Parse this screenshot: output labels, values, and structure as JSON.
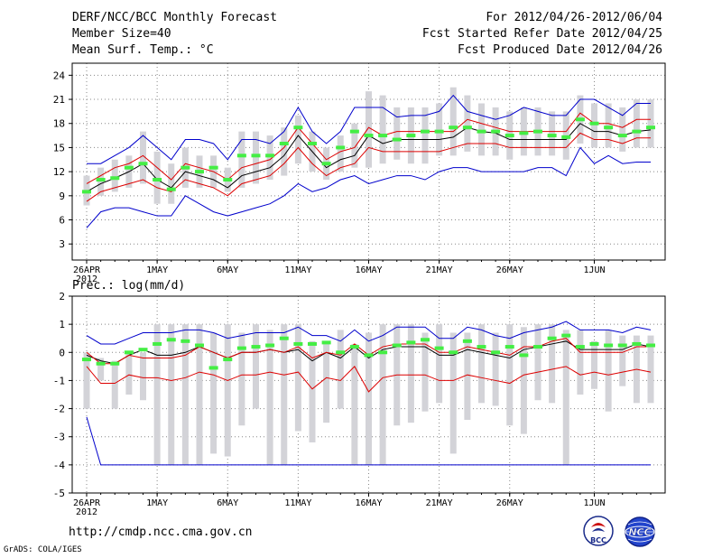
{
  "header": {
    "title": "DERF/NCC/BCC Monthly Forecast",
    "member_size": "Member Size=40",
    "variable": "Mean Surf. Temp.: °C",
    "period": "For 2012/04/26-2012/06/04",
    "started": "Fcst Started Refer Date 2012/04/25",
    "produced": "Fcst Produced Date 2012/04/26"
  },
  "footer": {
    "url": "http://cmdp.ncc.cma.gov.cn",
    "credit": "GrADS: COLA/IGES",
    "logo_bcc_text": "BCC",
    "logo_ncc_text": "NCC"
  },
  "chart_data": [
    {
      "type": "box-ensemble",
      "title": "Mean Surf. Temp.: °C",
      "xlabel": "",
      "ylabel": "°C",
      "ylim": [
        1,
        25.5
      ],
      "yticks": [
        3,
        6,
        9,
        12,
        15,
        18,
        21,
        24
      ],
      "days": 40,
      "xtick_labels": [
        {
          "day": 0,
          "label": "26APR",
          "sub": "2012"
        },
        {
          "day": 5,
          "label": "1MAY"
        },
        {
          "day": 10,
          "label": "6MAY"
        },
        {
          "day": 15,
          "label": "11MAY"
        },
        {
          "day": 20,
          "label": "16MAY"
        },
        {
          "day": 25,
          "label": "21MAY"
        },
        {
          "day": 30,
          "label": "26MAY"
        },
        {
          "day": 36,
          "label": "1JUN"
        }
      ],
      "grid": "dotted",
      "series": [
        {
          "name": "mean",
          "color": "#000000",
          "values": [
            9.5,
            10.5,
            11.2,
            12.0,
            13.0,
            11.0,
            10.0,
            12.0,
            11.5,
            11.0,
            10.0,
            11.5,
            12.0,
            12.5,
            14.0,
            16.5,
            14.5,
            12.5,
            13.5,
            14.0,
            16.5,
            15.5,
            16.0,
            16.0,
            16.0,
            16.0,
            16.3,
            17.5,
            17.0,
            16.8,
            16.0,
            16.0,
            16.0,
            16.0,
            16.0,
            18.0,
            17.0,
            17.0,
            16.5,
            17.0,
            17.2
          ]
        },
        {
          "name": "upper-90pct",
          "color": "#dd0000",
          "values": [
            10.5,
            11.5,
            12.5,
            13.0,
            14.0,
            12.5,
            11.0,
            13.0,
            12.5,
            12.0,
            11.0,
            12.5,
            13.0,
            13.5,
            15.0,
            17.5,
            15.5,
            13.5,
            14.5,
            15.0,
            17.5,
            16.5,
            17.0,
            17.0,
            17.0,
            17.0,
            17.0,
            18.5,
            18.0,
            17.5,
            17.0,
            17.0,
            17.0,
            17.0,
            17.0,
            19.3,
            18.0,
            18.0,
            17.5,
            18.5,
            18.5
          ]
        },
        {
          "name": "lower-10pct",
          "color": "#dd0000",
          "values": [
            8.3,
            9.5,
            10.0,
            10.5,
            11.0,
            10.0,
            9.5,
            11.0,
            10.5,
            10.0,
            9.0,
            10.5,
            11.0,
            11.5,
            13.0,
            15.0,
            13.0,
            11.5,
            12.5,
            13.0,
            15.0,
            14.5,
            14.5,
            14.5,
            14.5,
            14.5,
            15.0,
            15.5,
            15.5,
            15.5,
            15.0,
            15.0,
            15.0,
            15.0,
            15.0,
            16.8,
            16.0,
            16.0,
            15.5,
            16.2,
            16.2
          ]
        },
        {
          "name": "max",
          "color": "#0000cc",
          "values": [
            13.0,
            13.0,
            14.0,
            15.0,
            16.5,
            15.0,
            13.5,
            16.0,
            16.0,
            15.5,
            13.5,
            16.0,
            16.0,
            15.5,
            17.0,
            20.0,
            17.0,
            15.5,
            17.0,
            20.0,
            20.0,
            20.0,
            18.8,
            19.0,
            19.0,
            19.5,
            21.5,
            19.5,
            19.0,
            18.5,
            19.0,
            20.0,
            19.5,
            19.0,
            19.0,
            21.0,
            21.0,
            20.0,
            19.0,
            20.5,
            20.5
          ]
        },
        {
          "name": "min",
          "color": "#0000cc",
          "values": [
            5.0,
            7.0,
            7.5,
            7.5,
            7.0,
            6.5,
            6.5,
            9.0,
            8.0,
            7.0,
            6.5,
            7.0,
            7.5,
            8.0,
            9.0,
            10.5,
            9.5,
            10.0,
            11.0,
            11.5,
            10.5,
            11.0,
            11.5,
            11.5,
            11.0,
            12.0,
            12.5,
            12.5,
            12.0,
            12.0,
            12.0,
            12.0,
            12.5,
            12.5,
            11.5,
            15.0,
            13.0,
            14.0,
            13.0,
            13.2,
            13.2
          ]
        },
        {
          "name": "observed",
          "color": "#44ee44",
          "values": [
            9.5,
            11.0,
            11.2,
            12.5,
            13.0,
            11.0,
            9.8,
            12.5,
            12.0,
            12.5,
            11.0,
            14.0,
            14.0,
            14.0,
            15.5,
            17.5,
            15.5,
            13.0,
            15.0,
            17.0,
            16.5,
            16.5,
            16.0,
            16.5,
            17.0,
            17.0,
            17.5,
            17.5,
            17.0,
            17.0,
            16.5,
            16.8,
            17.0,
            16.5,
            16.3,
            18.5,
            18.0,
            17.5,
            16.5,
            17.0,
            17.5
          ]
        }
      ],
      "box_ranges": [
        {
          "values": [
            [
              7.8,
              11.5
            ],
            [
              9.0,
              12.5
            ],
            [
              9.5,
              13.5
            ],
            [
              10.0,
              14.0
            ],
            [
              10.5,
              17.0
            ],
            [
              8.0,
              14.5
            ],
            [
              8.0,
              13.0
            ],
            [
              10.0,
              15.0
            ],
            [
              10.0,
              14.0
            ],
            [
              10.0,
              14.0
            ],
            [
              9.5,
              12.5
            ],
            [
              10.0,
              17.0
            ],
            [
              10.5,
              17.0
            ],
            [
              11.0,
              16.5
            ],
            [
              11.5,
              17.5
            ],
            [
              13.0,
              19.0
            ],
            [
              12.0,
              17.0
            ],
            [
              11.0,
              15.0
            ],
            [
              12.0,
              16.5
            ],
            [
              12.5,
              18.0
            ],
            [
              12.5,
              22.0
            ],
            [
              13.0,
              21.5
            ],
            [
              13.5,
              20.0
            ],
            [
              13.0,
              20.0
            ],
            [
              13.0,
              20.0
            ],
            [
              14.0,
              20.5
            ],
            [
              14.0,
              22.5
            ],
            [
              14.5,
              21.5
            ],
            [
              14.0,
              20.5
            ],
            [
              14.0,
              20.0
            ],
            [
              13.5,
              19.5
            ],
            [
              14.0,
              20.0
            ],
            [
              14.0,
              20.0
            ],
            [
              14.0,
              19.5
            ],
            [
              13.5,
              19.5
            ],
            [
              15.5,
              21.5
            ],
            [
              15.0,
              20.5
            ],
            [
              15.0,
              20.5
            ],
            [
              14.5,
              20.0
            ],
            [
              15.0,
              21.0
            ],
            [
              15.0,
              21.0
            ]
          ]
        }
      ]
    },
    {
      "type": "box-ensemble",
      "title": "Prec.: log(mm/d)",
      "xlabel": "",
      "ylabel": "log(mm/d)",
      "ylim": [
        -5,
        2
      ],
      "yticks": [
        -5,
        -4,
        -3,
        -2,
        -1,
        0,
        1,
        2
      ],
      "days": 40,
      "xtick_labels": [
        {
          "day": 0,
          "label": "26APR",
          "sub": "2012"
        },
        {
          "day": 5,
          "label": "1MAY"
        },
        {
          "day": 10,
          "label": "6MAY"
        },
        {
          "day": 15,
          "label": "11MAY"
        },
        {
          "day": 20,
          "label": "16MAY"
        },
        {
          "day": 25,
          "label": "21MAY"
        },
        {
          "day": 30,
          "label": "26MAY"
        },
        {
          "day": 36,
          "label": "1JUN"
        }
      ],
      "grid": "dotted",
      "series": [
        {
          "name": "mean",
          "color": "#000000",
          "values": [
            -0.1,
            -0.3,
            -0.4,
            -0.1,
            0.1,
            -0.1,
            -0.1,
            0.0,
            0.2,
            0.0,
            -0.2,
            0.0,
            0.0,
            0.1,
            0.0,
            0.1,
            -0.3,
            0.0,
            -0.2,
            0.2,
            -0.2,
            0.1,
            0.2,
            0.2,
            0.2,
            -0.1,
            -0.1,
            0.1,
            0.0,
            -0.1,
            -0.2,
            0.1,
            0.2,
            0.3,
            0.4,
            0.1,
            0.1,
            0.1,
            0.1,
            0.3,
            0.2
          ]
        },
        {
          "name": "upper-90pct",
          "color": "#dd0000",
          "values": [
            0.0,
            -0.4,
            -0.4,
            -0.1,
            -0.2,
            -0.2,
            -0.2,
            -0.1,
            0.2,
            0.0,
            -0.2,
            0.0,
            0.0,
            0.1,
            0.0,
            0.2,
            -0.2,
            0.0,
            -0.1,
            0.3,
            -0.1,
            0.2,
            0.3,
            0.3,
            0.3,
            0.0,
            0.0,
            0.2,
            0.1,
            0.0,
            -0.1,
            0.2,
            0.2,
            0.4,
            0.5,
            0.0,
            0.0,
            0.0,
            0.0,
            0.2,
            0.2
          ]
        },
        {
          "name": "lower-10pct",
          "color": "#dd0000",
          "values": [
            -0.5,
            -1.1,
            -1.1,
            -0.8,
            -0.9,
            -0.9,
            -1.0,
            -0.9,
            -0.7,
            -0.8,
            -1.0,
            -0.8,
            -0.8,
            -0.7,
            -0.8,
            -0.7,
            -1.3,
            -0.9,
            -1.0,
            -0.5,
            -1.4,
            -0.9,
            -0.8,
            -0.8,
            -0.8,
            -1.0,
            -1.0,
            -0.8,
            -0.9,
            -1.0,
            -1.1,
            -0.8,
            -0.7,
            -0.6,
            -0.5,
            -0.8,
            -0.7,
            -0.8,
            -0.7,
            -0.6,
            -0.7
          ]
        },
        {
          "name": "max",
          "color": "#0000cc",
          "values": [
            0.6,
            0.3,
            0.3,
            0.5,
            0.7,
            0.7,
            0.7,
            0.8,
            0.8,
            0.7,
            0.5,
            0.6,
            0.7,
            0.7,
            0.7,
            0.9,
            0.6,
            0.6,
            0.4,
            0.8,
            0.4,
            0.6,
            0.9,
            0.9,
            0.9,
            0.5,
            0.5,
            0.9,
            0.8,
            0.6,
            0.5,
            0.7,
            0.8,
            0.9,
            1.1,
            0.8,
            0.8,
            0.8,
            0.7,
            0.9,
            0.8
          ]
        },
        {
          "name": "min",
          "color": "#0000cc",
          "values": [
            -2.3,
            -4.0,
            -4.0,
            -4.0,
            -4.0,
            -4.0,
            -4.0,
            -4.0,
            -4.0,
            -4.0,
            -4.0,
            -4.0,
            -4.0,
            -4.0,
            -4.0,
            -4.0,
            -4.0,
            -4.0,
            -4.0,
            -4.0,
            -4.0,
            -4.0,
            -4.0,
            -4.0,
            -4.0,
            -4.0,
            -4.0,
            -4.0,
            -4.0,
            -4.0,
            -4.0,
            -4.0,
            -4.0,
            -4.0,
            -4.0,
            -4.0,
            -4.0,
            -4.0,
            -4.0,
            -4.0,
            -4.0
          ]
        },
        {
          "name": "observed",
          "color": "#44ee44",
          "values": [
            -0.25,
            -0.4,
            -0.4,
            0.0,
            0.1,
            0.3,
            0.45,
            0.4,
            0.25,
            -0.55,
            -0.25,
            0.15,
            0.2,
            0.25,
            0.5,
            0.3,
            0.3,
            0.35,
            0.0,
            0.2,
            -0.1,
            0.0,
            0.25,
            0.35,
            0.45,
            0.15,
            0.0,
            0.4,
            0.2,
            0.0,
            0.2,
            -0.1,
            0.2,
            0.5,
            0.6,
            0.2,
            0.3,
            0.25,
            0.25,
            0.3,
            0.25
          ]
        }
      ],
      "box_ranges": [
        {
          "values": [
            [
              -2.0,
              0.0
            ],
            [
              -1.0,
              -0.2
            ],
            [
              -2.0,
              -0.3
            ],
            [
              -1.5,
              0.0
            ],
            [
              -1.7,
              0.0
            ],
            [
              -4.0,
              1.0
            ],
            [
              -4.0,
              1.0
            ],
            [
              -4.0,
              1.0
            ],
            [
              -4.0,
              1.0
            ],
            [
              -3.6,
              0.7
            ],
            [
              -3.7,
              1.0
            ],
            [
              -2.6,
              0.7
            ],
            [
              -2.0,
              1.0
            ],
            [
              -4.0,
              0.8
            ],
            [
              -4.0,
              1.0
            ],
            [
              -2.8,
              1.0
            ],
            [
              -3.2,
              0.4
            ],
            [
              -2.5,
              0.4
            ],
            [
              -2.0,
              0.8
            ],
            [
              -4.0,
              0.3
            ],
            [
              -4.0,
              0.7
            ],
            [
              -4.0,
              1.0
            ],
            [
              -2.6,
              1.0
            ],
            [
              -2.5,
              1.0
            ],
            [
              -2.1,
              0.7
            ],
            [
              -1.8,
              1.0
            ],
            [
              -3.6,
              0.7
            ],
            [
              -2.4,
              0.7
            ],
            [
              -1.8,
              1.0
            ],
            [
              -1.9,
              0.7
            ],
            [
              -2.6,
              1.0
            ],
            [
              -2.9,
              0.9
            ],
            [
              -1.7,
              1.0
            ],
            [
              -1.8,
              1.0
            ],
            [
              -4.0,
              0.8
            ],
            [
              -1.5,
              0.8
            ],
            [
              -1.3,
              0.4
            ],
            [
              -2.1,
              0.8
            ],
            [
              -1.2,
              0.6
            ],
            [
              -1.8,
              0.6
            ],
            [
              -1.8,
              0.6
            ]
          ]
        }
      ]
    }
  ]
}
